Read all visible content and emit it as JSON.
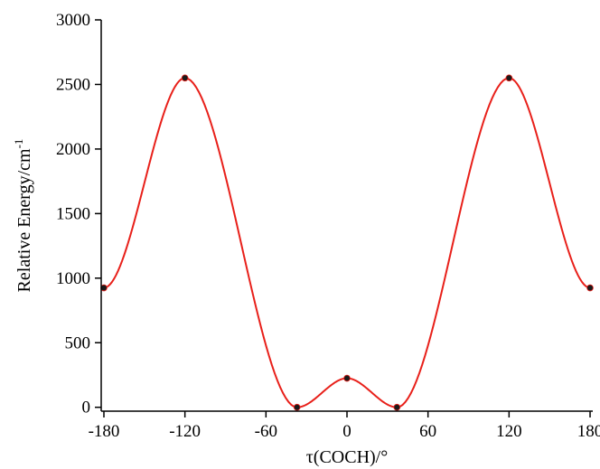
{
  "chart_data": {
    "type": "line",
    "xlabel": "τ(COCH)/°",
    "ylabel": "Relative Energy/cm",
    "ylabel_superscript": "-1",
    "xlim": [
      -182,
      182
    ],
    "ylim": [
      -30,
      3000
    ],
    "x_ticks": [
      -180,
      -120,
      -60,
      0,
      60,
      120,
      180
    ],
    "x_tick_labels": [
      "-180",
      "-120",
      "-60",
      "0",
      "60",
      "120",
      "180"
    ],
    "y_ticks": [
      0,
      500,
      1000,
      1500,
      2000,
      2500,
      3000
    ],
    "y_tick_labels": [
      "0",
      "500",
      "1000",
      "1500",
      "2000",
      "2500",
      "3000"
    ],
    "grid": false,
    "series": [
      {
        "color": "#e8201a",
        "marker_color": "#1a1a1a",
        "x": [
          -180,
          -120,
          -37,
          0,
          37,
          120,
          180
        ],
        "y": [
          925,
          2550,
          0,
          225,
          0,
          2550,
          925
        ]
      }
    ]
  }
}
